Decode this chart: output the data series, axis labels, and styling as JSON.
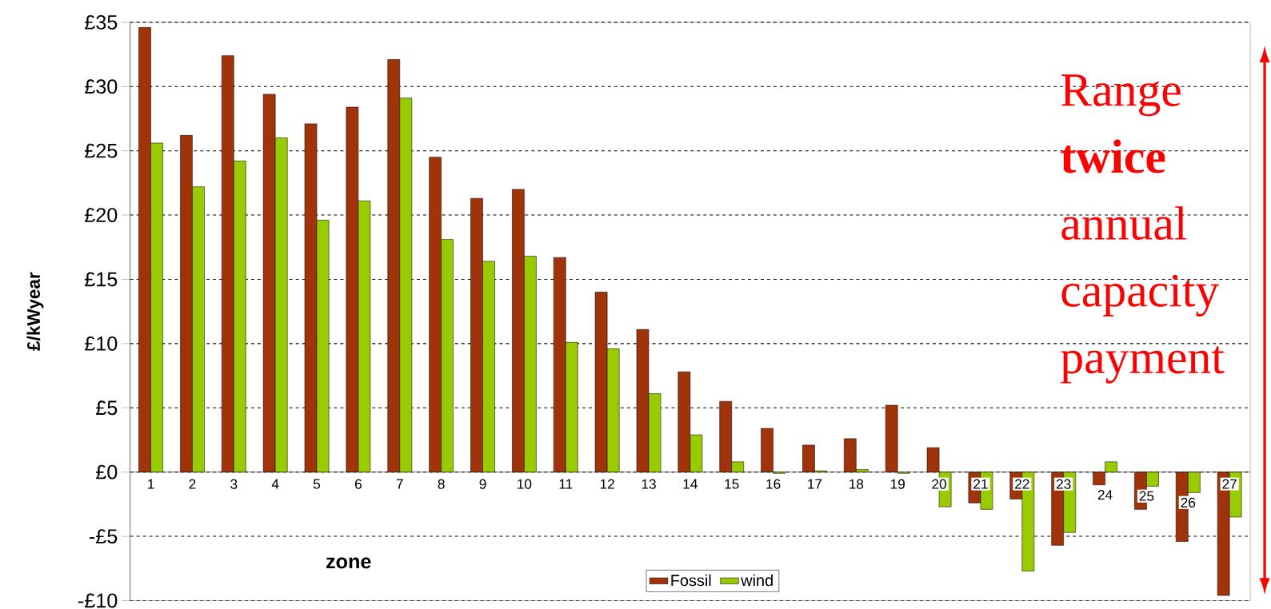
{
  "chart_data": {
    "type": "bar",
    "xlabel": "zone",
    "ylabel": "£/kWyear",
    "categories": [
      "1",
      "2",
      "3",
      "4",
      "5",
      "6",
      "7",
      "8",
      "9",
      "10",
      "11",
      "12",
      "13",
      "14",
      "15",
      "16",
      "17",
      "18",
      "19",
      "20",
      "21",
      "22",
      "23",
      "24",
      "25",
      "26",
      "27"
    ],
    "series": [
      {
        "name": "Fossil",
        "color": "#a0330a",
        "values": [
          34.6,
          26.2,
          32.4,
          29.4,
          27.1,
          28.4,
          32.1,
          24.5,
          21.3,
          22.0,
          16.7,
          14.0,
          11.1,
          7.8,
          5.5,
          3.4,
          2.1,
          2.6,
          5.2,
          1.9,
          -2.4,
          -2.1,
          -5.7,
          -1.0,
          -2.9,
          -5.4,
          -9.6
        ]
      },
      {
        "name": "wind",
        "color": "#99cc00",
        "values": [
          25.6,
          22.2,
          24.2,
          26.0,
          19.6,
          21.1,
          29.1,
          18.1,
          16.4,
          16.8,
          10.1,
          9.6,
          6.1,
          2.9,
          0.8,
          -0.1,
          0.1,
          0.2,
          -0.1,
          -2.7,
          -2.9,
          -7.7,
          -4.7,
          0.8,
          -1.1,
          -1.6,
          -3.5
        ]
      }
    ],
    "ylim": [
      -10,
      35
    ],
    "yticks": [
      {
        "value": -10,
        "label": "-£10"
      },
      {
        "value": -5,
        "label": "-£5"
      },
      {
        "value": 0,
        "label": "£0"
      },
      {
        "value": 5,
        "label": "£5"
      },
      {
        "value": 10,
        "label": "£10"
      },
      {
        "value": 15,
        "label": "£15"
      },
      {
        "value": 20,
        "label": "£20"
      },
      {
        "value": 25,
        "label": "£25"
      },
      {
        "value": 30,
        "label": "£30"
      },
      {
        "value": 35,
        "label": "£35"
      }
    ],
    "grid": "y",
    "legend": "bottom",
    "annotations": [
      "Range **twice** annual capacity payment"
    ]
  }
}
